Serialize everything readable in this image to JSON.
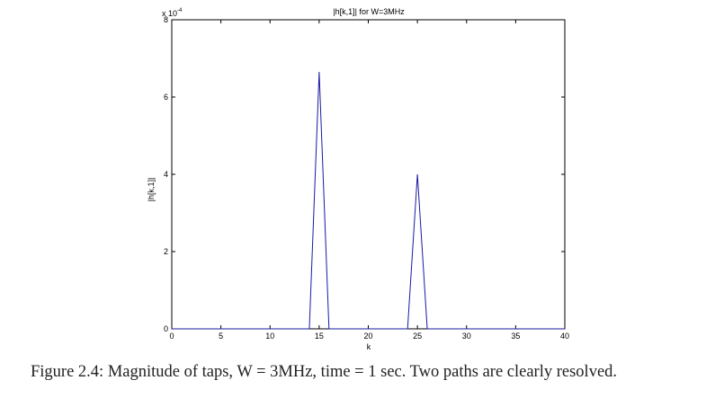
{
  "chart_data": {
    "type": "line",
    "title": "|h[k,1]| for W=3MHz",
    "xlabel": "k",
    "ylabel": "|h[k,1]|",
    "y_scale_label": "x 10",
    "y_scale_exponent": "-4",
    "xlim": [
      0,
      40
    ],
    "ylim": [
      0,
      8
    ],
    "x_ticks": [
      "0",
      "5",
      "10",
      "15",
      "20",
      "25",
      "30",
      "35",
      "40"
    ],
    "y_ticks": [
      "0",
      "2",
      "4",
      "6",
      "8"
    ],
    "grid": false,
    "series": [
      {
        "color": "#1a1aa0",
        "x": [
          0,
          1,
          2,
          3,
          4,
          5,
          6,
          7,
          8,
          9,
          10,
          11,
          12,
          13,
          14,
          15,
          16,
          17,
          18,
          19,
          20,
          21,
          22,
          23,
          24,
          25,
          26,
          27,
          28,
          29,
          30,
          31,
          32,
          33,
          34,
          35,
          36,
          37,
          38,
          39,
          40
        ],
        "y": [
          0,
          0,
          0,
          0,
          0,
          0,
          0,
          0,
          0,
          0,
          0,
          0,
          0,
          0,
          0,
          6.65,
          0,
          0,
          0,
          0,
          0,
          0,
          0,
          0,
          0,
          4.0,
          0,
          0,
          0,
          0,
          0,
          0,
          0,
          0,
          0,
          0,
          0,
          0,
          0,
          0,
          0
        ]
      }
    ]
  },
  "caption": "Figure 2.4: Magnitude of taps, W = 3MHz, time = 1 sec. Two paths are clearly resolved."
}
